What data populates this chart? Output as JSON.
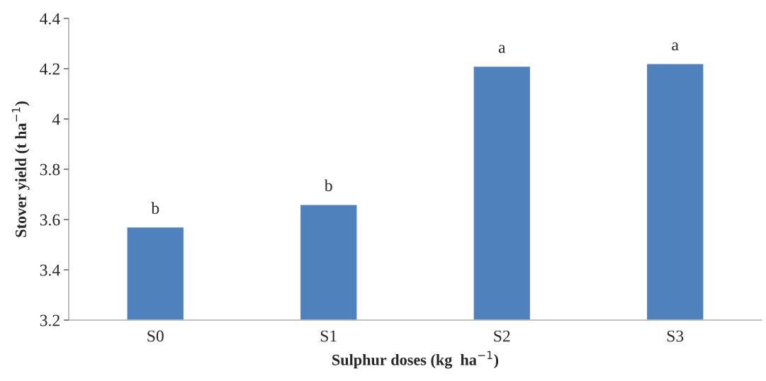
{
  "chart_data": {
    "type": "bar",
    "xlabel": "Sulphur doses (kg  ha$^{−1}$)",
    "ylabel": "Stover yield (t ha$^{−1}$)",
    "categories": [
      "S0",
      "S1",
      "S2",
      "S3"
    ],
    "values": [
      3.57,
      3.66,
      4.21,
      4.22
    ],
    "color": "#4f81bd",
    "ylim": [
      3.2,
      4.4
    ],
    "yticks": [
      3.2,
      3.4,
      3.6,
      3.8,
      4,
      4.2,
      4.4
    ],
    "grid": false,
    "legend": false,
    "annotations": [
      {
        "text": "b",
        "x": "S0",
        "y": 3.57
      },
      {
        "text": "b",
        "x": "S1",
        "y": 3.66
      },
      {
        "text": "a",
        "x": "S2",
        "y": 4.21
      },
      {
        "text": "a",
        "x": "S3",
        "y": 4.22
      }
    ]
  }
}
